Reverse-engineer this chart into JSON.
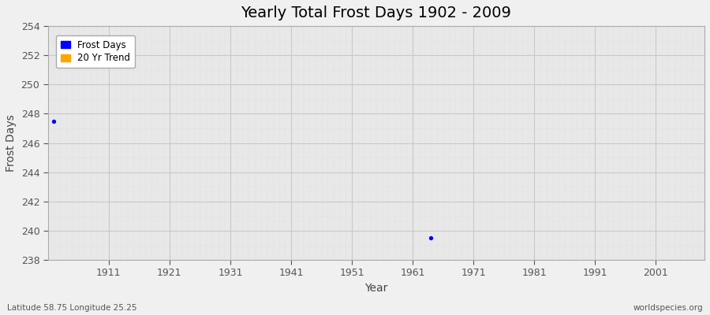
{
  "title": "Yearly Total Frost Days 1902 - 2009",
  "xlabel": "Year",
  "ylabel": "Frost Days",
  "xlim": [
    1901,
    2009
  ],
  "ylim": [
    238,
    254
  ],
  "yticks": [
    238,
    240,
    242,
    244,
    246,
    248,
    250,
    252,
    254
  ],
  "xticks": [
    1911,
    1921,
    1931,
    1941,
    1951,
    1961,
    1971,
    1981,
    1991,
    2001
  ],
  "data_points": [
    {
      "year": 1902,
      "value": 247.5
    },
    {
      "year": 1964,
      "value": 239.5
    }
  ],
  "dot_color": "#0000ff",
  "dot_size": 8,
  "legend_items": [
    {
      "label": "Frost Days",
      "color": "#0000ff"
    },
    {
      "label": "20 Yr Trend",
      "color": "#ffa500"
    }
  ],
  "figure_bg_color": "#f0f0f0",
  "plot_bg_color": "#e8e8e8",
  "grid_major_color": "#c8c8c8",
  "grid_minor_color": "#d8d8d8",
  "title_fontsize": 14,
  "axis_label_fontsize": 10,
  "tick_fontsize": 9,
  "bottom_left_text": "Latitude 58.75 Longitude 25.25",
  "bottom_right_text": "worldspecies.org"
}
